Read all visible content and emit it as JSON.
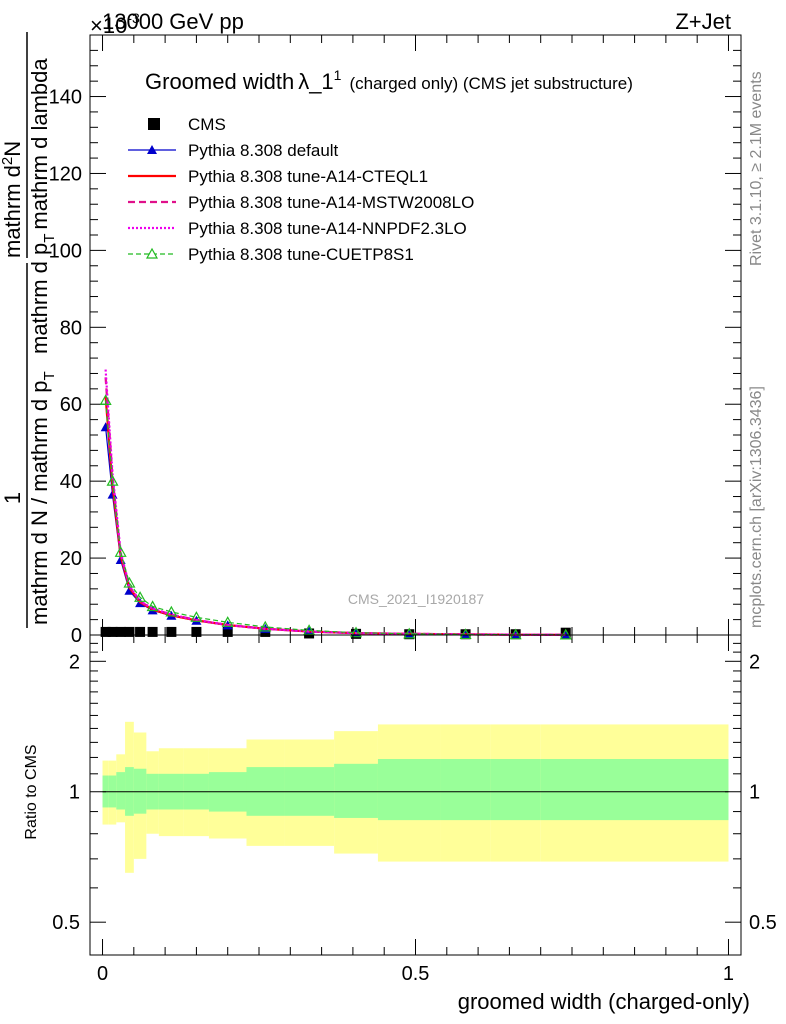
{
  "header": {
    "energy_label": "13000 GeV pp",
    "process_label": "Z+Jet",
    "exponent_label": "×10",
    "exponent_power": "-3"
  },
  "side_text": {
    "rivet": "Rivet 3.1.10, ≥ 2.1M events",
    "mcplots": "mcplots.cern.ch [arXiv:1306.3436]"
  },
  "plot_title": {
    "main": "Groomed width",
    "lambda": "λ_1",
    "lambda_sup": "1",
    "sub": "(charged only) (CMS jet substructure)"
  },
  "watermark": "CMS_2021_I1920187",
  "colors": {
    "data": "#000000",
    "default": "#0000cc",
    "cteql1": "#ff0000",
    "mstw": "#e0108a",
    "nnpdf": "#ee00ee",
    "cuetp": "#22bb22",
    "band_outer": "#ffff99",
    "band_inner": "#99ff99"
  },
  "chart_data": [
    {
      "type": "line",
      "panel": "main",
      "ylabel": "1 / mathrm d N / mathrm d p_T mathrm d p_T mathrm d lambda   mathrm d^2N",
      "ylabel_parts": {
        "numerator_one": "1",
        "denominator": "mathrm d N / mathrm d p",
        "denominator_sub": "T",
        "rhs_numerator": "mathrm d",
        "rhs_numerator_sup": "2",
        "rhs_numerator_tail": "N",
        "rhs_denominator": "mathrm d p",
        "rhs_denominator_sub": "T",
        "rhs_denominator_tail": "mathrm d lambda"
      },
      "xlim": [
        -0.02,
        1.02
      ],
      "ylim": [
        0,
        156
      ],
      "y_ticks": [
        "0",
        "20",
        "40",
        "60",
        "80",
        "100",
        "120",
        "140"
      ],
      "legend_position": "top-left",
      "x": [
        0.005,
        0.016,
        0.029,
        0.043,
        0.06,
        0.08,
        0.11,
        0.15,
        0.2,
        0.26,
        0.33,
        0.405,
        0.49,
        0.58,
        0.66,
        0.74
      ],
      "series": [
        {
          "name": "CMS",
          "key": "data",
          "marker": "square",
          "values": [
            0.8,
            0.8,
            0.8,
            0.8,
            0.8,
            0.8,
            0.8,
            0.8,
            0.8,
            0.8,
            0.4,
            0.3,
            0.2,
            0.2,
            0.2,
            0.6
          ]
        },
        {
          "name": "Pythia 8.308 default",
          "key": "default",
          "marker": "triangle",
          "values": [
            54,
            36.5,
            19.5,
            11.5,
            8.3,
            6.4,
            5.0,
            3.7,
            2.5,
            1.6,
            0.9,
            0.5,
            0.3,
            0.15,
            0.08,
            0.04
          ]
        },
        {
          "name": "Pythia 8.308 tune-A14-CTEQL1",
          "key": "cteql1",
          "marker": "none",
          "values": [
            62,
            39,
            20.5,
            12.3,
            8.5,
            6.6,
            5.1,
            3.8,
            2.6,
            1.6,
            0.9,
            0.5,
            0.3,
            0.15,
            0.08,
            0.04
          ]
        },
        {
          "name": "Pythia 8.308 tune-A14-MSTW2008LO",
          "key": "mstw",
          "marker": "none",
          "values": [
            67,
            41,
            21,
            12.6,
            8.7,
            6.8,
            5.3,
            3.9,
            2.6,
            1.6,
            0.9,
            0.5,
            0.3,
            0.15,
            0.08,
            0.04
          ]
        },
        {
          "name": "Pythia 8.308 tune-A14-NNPDF2.3LO",
          "key": "nnpdf",
          "marker": "none",
          "values": [
            69,
            42,
            21.5,
            12.8,
            8.8,
            6.9,
            5.3,
            3.9,
            2.6,
            1.6,
            0.9,
            0.5,
            0.3,
            0.15,
            0.08,
            0.04
          ]
        },
        {
          "name": "Pythia 8.308 tune-CUETP8S1",
          "key": "cuetp",
          "marker": "triangle-open",
          "values": [
            61,
            40,
            21.5,
            13.5,
            9.8,
            7.4,
            6.0,
            4.6,
            3.3,
            2.1,
            1.2,
            0.6,
            0.3,
            0.15,
            0.08,
            0.04
          ]
        }
      ]
    },
    {
      "type": "area",
      "panel": "ratio",
      "xlabel": "groomed width (charged-only)",
      "ylabel": "Ratio to CMS",
      "xlim": [
        -0.02,
        1.02
      ],
      "ylim": [
        0.42,
        2.3
      ],
      "y_scale": "log",
      "y_ticks": [
        "0.5",
        "1",
        "2"
      ],
      "x_ticks": [
        "0",
        "0.5",
        "1"
      ],
      "bin_edges": [
        0.0,
        0.01,
        0.022,
        0.036,
        0.05,
        0.07,
        0.09,
        0.13,
        0.17,
        0.23,
        0.29,
        0.37,
        0.44,
        0.54,
        0.62,
        0.7,
        1.0
      ],
      "outer_band": {
        "lo": [
          0.84,
          0.84,
          0.85,
          0.65,
          0.7,
          0.8,
          0.79,
          0.79,
          0.78,
          0.75,
          0.75,
          0.72,
          0.69,
          0.69,
          0.69,
          0.69
        ],
        "hi": [
          1.18,
          1.18,
          1.22,
          1.45,
          1.37,
          1.24,
          1.26,
          1.26,
          1.26,
          1.32,
          1.32,
          1.38,
          1.43,
          1.43,
          1.43,
          1.43
        ]
      },
      "inner_band": {
        "lo": [
          0.92,
          0.92,
          0.91,
          0.88,
          0.89,
          0.91,
          0.91,
          0.91,
          0.9,
          0.88,
          0.88,
          0.87,
          0.86,
          0.86,
          0.86,
          0.86
        ],
        "hi": [
          1.09,
          1.09,
          1.11,
          1.14,
          1.13,
          1.1,
          1.1,
          1.1,
          1.11,
          1.14,
          1.14,
          1.16,
          1.19,
          1.19,
          1.19,
          1.19
        ]
      },
      "reference_line": 1
    }
  ]
}
